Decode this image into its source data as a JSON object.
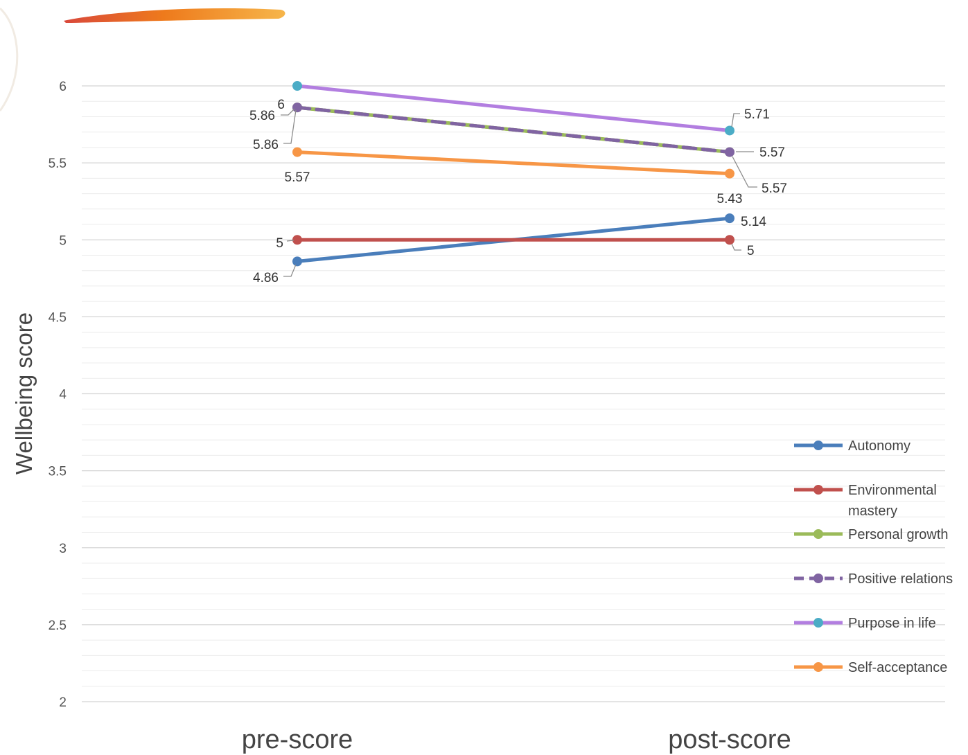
{
  "chart_data": {
    "type": "line",
    "title": "",
    "xlabel": "",
    "ylabel": "Wellbeing score",
    "categories": [
      "pre-score",
      "post-score"
    ],
    "ylim": [
      2,
      6
    ],
    "y_ticks": [
      "2",
      "2.5",
      "3",
      "3.5",
      "4",
      "4.5",
      "5",
      "5.5",
      "6"
    ],
    "grid": true,
    "legend_position": "right",
    "series": [
      {
        "name": "Autonomy",
        "values": [
          4.86,
          5.14
        ],
        "value_labels": [
          "4.86",
          "5.14"
        ],
        "line_color": "#4a7ebb",
        "marker_color": "#4a7ebb",
        "dashed": false
      },
      {
        "name": "Environmental mastery",
        "legend_lines": [
          "Environmental",
          "mastery"
        ],
        "values": [
          5,
          5
        ],
        "value_labels": [
          "5",
          "5"
        ],
        "line_color": "#c0504d",
        "marker_color": "#c0504d",
        "dashed": false
      },
      {
        "name": "Personal growth",
        "values": [
          5.86,
          5.57
        ],
        "value_labels": [
          "5.86",
          "5.57"
        ],
        "line_color": "#9bbb59",
        "marker_color": "#9bbb59",
        "dashed": false
      },
      {
        "name": "Positive relations",
        "values": [
          5.86,
          5.57
        ],
        "value_labels": [
          "5.86",
          "5.57"
        ],
        "line_color": "#8064a2",
        "marker_color": "#8064a2",
        "dashed": true
      },
      {
        "name": "Purpose in life",
        "values": [
          6,
          5.71
        ],
        "value_labels": [
          "6",
          "5.71"
        ],
        "line_color": "#b27ee0",
        "marker_color": "#4bacc6",
        "dashed": false
      },
      {
        "name": "Self-acceptance",
        "values": [
          5.57,
          5.43
        ],
        "value_labels": [
          "5.57",
          "5.43"
        ],
        "line_color": "#f79646",
        "marker_color": "#f79646",
        "dashed": false
      }
    ]
  }
}
